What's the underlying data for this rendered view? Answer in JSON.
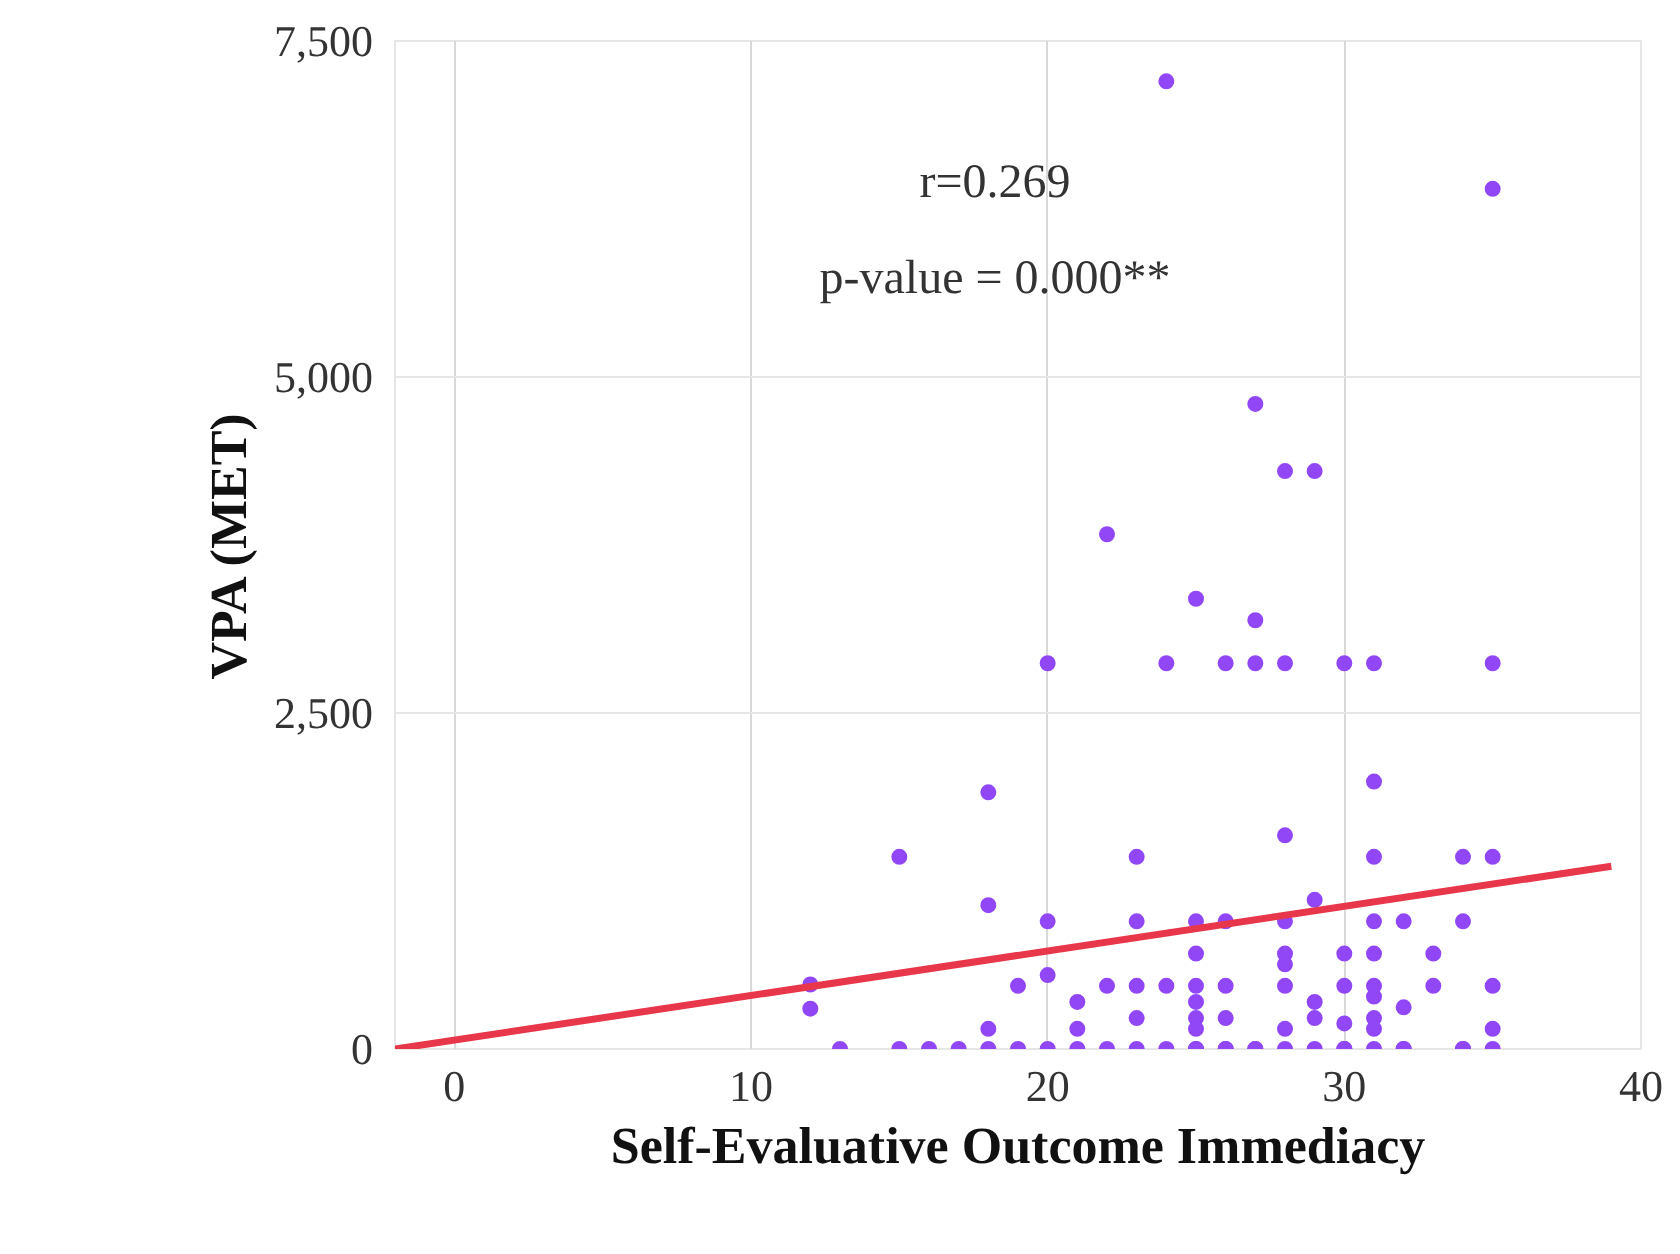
{
  "chart_data": {
    "type": "scatter",
    "xlabel": "Self-Evaluative Outcome Immediacy",
    "ylabel": "VPA (MET)",
    "annotations": [
      "r=0.269",
      "p-value = 0.000**"
    ],
    "xlim": [
      -2,
      40
    ],
    "ylim": [
      0,
      7500
    ],
    "xticks": [
      0,
      10,
      20,
      30,
      40
    ],
    "yticks": [
      {
        "value": 0,
        "label": "0"
      },
      {
        "value": 2500,
        "label": "2,500"
      },
      {
        "value": 5000,
        "label": "5,000"
      },
      {
        "value": 7500,
        "label": "7,500"
      }
    ],
    "grid": true,
    "series": [
      {
        "color": "#9147f5",
        "marker": "circle",
        "x": [
          24,
          35,
          27,
          28,
          29,
          22,
          25,
          27,
          20,
          24,
          26,
          27,
          28,
          30,
          31,
          35,
          18,
          15,
          23,
          18,
          20,
          23,
          12,
          12,
          19,
          20,
          21,
          22,
          23,
          24,
          18,
          21,
          23,
          13,
          15,
          16,
          17,
          18,
          19,
          20,
          21,
          22,
          23,
          24,
          25,
          26,
          27,
          30,
          32,
          34,
          31,
          28,
          31,
          34,
          35,
          29,
          25,
          26,
          28,
          31,
          32,
          34,
          25,
          28,
          30,
          31,
          33,
          28,
          25,
          26,
          28,
          30,
          31,
          33,
          35,
          31,
          29,
          25,
          32,
          25,
          26,
          29,
          31,
          25,
          28,
          30,
          31,
          35,
          25,
          26,
          27,
          28,
          29,
          30,
          31,
          32,
          34,
          35
        ],
        "values": [
          7200,
          6400,
          4800,
          4300,
          4300,
          3830,
          3350,
          3190,
          2870,
          2870,
          2870,
          2870,
          2870,
          2870,
          2870,
          2870,
          1910,
          1430,
          1430,
          1070,
          950,
          950,
          480,
          300,
          470,
          550,
          350,
          470,
          470,
          470,
          150,
          150,
          230,
          0,
          0,
          0,
          0,
          0,
          0,
          0,
          0,
          0,
          0,
          0,
          0,
          0,
          0,
          0,
          0,
          0,
          1990,
          1590,
          1430,
          1430,
          1430,
          1110,
          950,
          950,
          950,
          950,
          950,
          950,
          710,
          710,
          710,
          710,
          710,
          630,
          470,
          470,
          470,
          470,
          470,
          470,
          470,
          390,
          350,
          350,
          310,
          230,
          230,
          230,
          230,
          150,
          150,
          190,
          150,
          150,
          0,
          0,
          0,
          0,
          0,
          0,
          0,
          0,
          0,
          0
        ]
      },
      {
        "type": "line",
        "color": "#e8374a",
        "line_style": "solid",
        "marker": "none",
        "x": [
          -2,
          39
        ],
        "values": [
          0,
          1360
        ]
      }
    ]
  }
}
